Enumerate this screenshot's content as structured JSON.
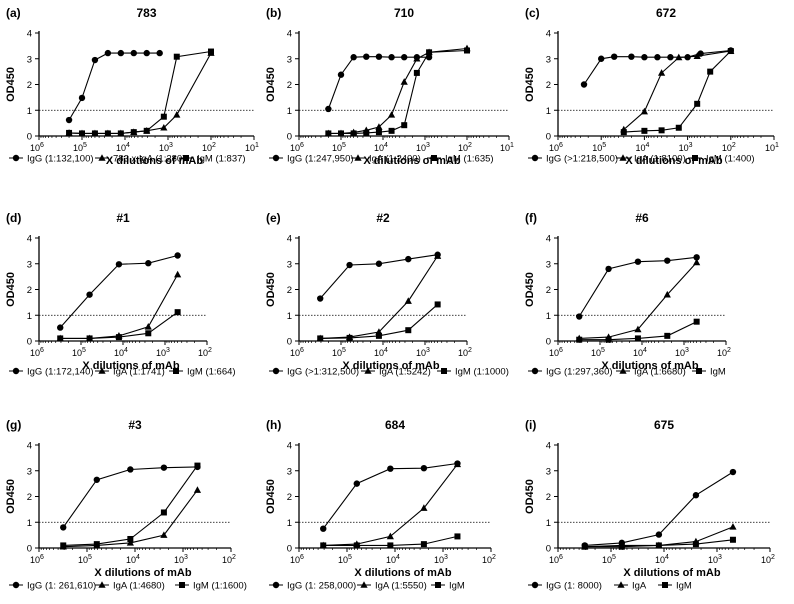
{
  "figure": {
    "x_axis_label": "X dilutions of mAb",
    "y_axis_label": "OD450",
    "threshold": 1
  },
  "chart_data": [
    {
      "type": "line",
      "panel_letter": "(a)",
      "title": "783",
      "xlabel": "X dilutions of mAb",
      "ylabel": "OD450",
      "xscale": "log-reversed",
      "xlim": [
        1000000,
        10
      ],
      "ylim": [
        0,
        4
      ],
      "yticks": [
        "0",
        "1",
        "2",
        "3",
        "4"
      ],
      "xticks": [
        {
          "base": "10",
          "exp": "6"
        },
        {
          "base": "10",
          "exp": "5"
        },
        {
          "base": "10",
          "exp": "4"
        },
        {
          "base": "10",
          "exp": "3"
        },
        {
          "base": "10",
          "exp": "2"
        },
        {
          "base": "10",
          "exp": "1"
        }
      ],
      "threshold": 1,
      "series": [
        {
          "name": "IgG",
          "legend": "IgG (1:132,100)",
          "marker": "circle",
          "x": [
            200000,
            100000,
            50000,
            25000,
            12500,
            6250,
            3125,
            1562
          ],
          "y": [
            0.62,
            1.48,
            2.95,
            3.22,
            3.22,
            3.22,
            3.22,
            3.22
          ]
        },
        {
          "name": "783 x IgA",
          "legend": "783 x IgA (1:280)",
          "marker": "triangle",
          "x": [
            200000,
            100000,
            50000,
            25000,
            12500,
            6250,
            3125,
            1250,
            625,
            100
          ],
          "y": [
            0.12,
            0.1,
            0.1,
            0.1,
            0.1,
            0.15,
            0.2,
            0.32,
            0.82,
            3.22
          ]
        },
        {
          "name": "IgM",
          "legend": "IgM (1:837)",
          "marker": "square",
          "x": [
            200000,
            100000,
            50000,
            25000,
            12500,
            6250,
            3125,
            1250,
            625,
            100
          ],
          "y": [
            0.12,
            0.1,
            0.1,
            0.1,
            0.1,
            0.15,
            0.2,
            0.75,
            3.08,
            3.28
          ]
        }
      ]
    },
    {
      "type": "line",
      "panel_letter": "(b)",
      "title": "710",
      "xlabel": "X dilutions of mAb",
      "ylabel": "OD450",
      "xscale": "log-reversed",
      "xlim": [
        1000000,
        10
      ],
      "ylim": [
        0,
        4
      ],
      "yticks": [
        "0",
        "1",
        "2",
        "3",
        "4"
      ],
      "xticks": [
        {
          "base": "10",
          "exp": "6"
        },
        {
          "base": "10",
          "exp": "5"
        },
        {
          "base": "10",
          "exp": "4"
        },
        {
          "base": "10",
          "exp": "3"
        },
        {
          "base": "10",
          "exp": "2"
        },
        {
          "base": "10",
          "exp": "1"
        }
      ],
      "threshold": 1,
      "series": [
        {
          "name": "IgG",
          "legend": "IgG (1:247,950)",
          "marker": "circle",
          "x": [
            200000,
            100000,
            50000,
            25000,
            12500,
            6250,
            3125,
            1562,
            800
          ],
          "y": [
            1.05,
            2.38,
            3.06,
            3.08,
            3.08,
            3.06,
            3.06,
            3.06,
            3.06
          ]
        },
        {
          "name": "IgA",
          "legend": "IgA (1:2400)",
          "marker": "triangle",
          "x": [
            200000,
            100000,
            50000,
            25000,
            12500,
            6250,
            3125,
            1562,
            800,
            100
          ],
          "y": [
            0.1,
            0.1,
            0.14,
            0.22,
            0.35,
            0.82,
            2.1,
            3.0,
            3.25,
            3.4
          ]
        },
        {
          "name": "IgM",
          "legend": "IgM (1:635)",
          "marker": "square",
          "x": [
            200000,
            100000,
            50000,
            25000,
            12500,
            6250,
            3125,
            1562,
            800,
            100
          ],
          "y": [
            0.1,
            0.1,
            0.1,
            0.12,
            0.15,
            0.2,
            0.42,
            2.45,
            3.25,
            3.32
          ]
        }
      ]
    },
    {
      "type": "line",
      "panel_letter": "(c)",
      "title": "672",
      "xlabel": "X dilutions of mAb",
      "ylabel": "OD450",
      "xscale": "log-reversed",
      "xlim": [
        1000000,
        10
      ],
      "ylim": [
        0,
        4
      ],
      "yticks": [
        "0",
        "1",
        "2",
        "3",
        "4"
      ],
      "xticks": [
        {
          "base": "10",
          "exp": "6"
        },
        {
          "base": "10",
          "exp": "5"
        },
        {
          "base": "10",
          "exp": "4"
        },
        {
          "base": "10",
          "exp": "3"
        },
        {
          "base": "10",
          "exp": "2"
        },
        {
          "base": "10",
          "exp": "1"
        }
      ],
      "threshold": 1,
      "series": [
        {
          "name": "IgG",
          "legend": "IgG (>1:218,500)",
          "marker": "circle",
          "x": [
            250000,
            100000,
            50000,
            20000,
            10000,
            5000,
            2500,
            1000,
            500,
            100
          ],
          "y": [
            2.0,
            3.0,
            3.08,
            3.08,
            3.06,
            3.06,
            3.06,
            3.06,
            3.2,
            3.32
          ]
        },
        {
          "name": "IgA",
          "legend": "IgA (1:8100)",
          "marker": "triangle",
          "x": [
            30000,
            10000,
            4000,
            1600,
            600,
            100
          ],
          "y": [
            0.25,
            0.95,
            2.45,
            3.05,
            3.1,
            3.3
          ]
        },
        {
          "name": "IgM",
          "legend": "IgM (1:400)",
          "marker": "square",
          "x": [
            30000,
            10000,
            4000,
            1600,
            600,
            300,
            100
          ],
          "y": [
            0.15,
            0.2,
            0.22,
            0.32,
            1.25,
            2.5,
            3.3
          ]
        }
      ]
    },
    {
      "type": "line",
      "panel_letter": "(d)",
      "title": "#1",
      "xlabel": "X dilutions of mAb",
      "ylabel": "OD450",
      "xscale": "log-reversed",
      "xlim": [
        1000000,
        100
      ],
      "ylim": [
        0,
        4
      ],
      "yticks": [
        "0",
        "1",
        "2",
        "3",
        "4"
      ],
      "xticks": [
        {
          "base": "10",
          "exp": "6"
        },
        {
          "base": "10",
          "exp": "5"
        },
        {
          "base": "10",
          "exp": "4"
        },
        {
          "base": "10",
          "exp": "3"
        },
        {
          "base": "10",
          "exp": "2"
        }
      ],
      "threshold": 1,
      "series": [
        {
          "name": "IgG",
          "legend": "IgG (1:172,140)",
          "marker": "circle",
          "x": [
            312500,
            62500,
            12500,
            2500,
            500
          ],
          "y": [
            0.52,
            1.8,
            2.98,
            3.02,
            3.32
          ]
        },
        {
          "name": "IgA",
          "legend": "IgA (1:1741)",
          "marker": "triangle",
          "x": [
            312500,
            62500,
            12500,
            2500,
            500
          ],
          "y": [
            0.1,
            0.1,
            0.2,
            0.55,
            2.58
          ]
        },
        {
          "name": "IgM",
          "legend": "IgM (1:664)",
          "marker": "square",
          "x": [
            312500,
            62500,
            12500,
            2500,
            500
          ],
          "y": [
            0.1,
            0.1,
            0.15,
            0.3,
            1.12
          ]
        }
      ]
    },
    {
      "type": "line",
      "panel_letter": "(e)",
      "title": "#2",
      "xlabel": "X dilutions of mAb",
      "ylabel": "OD450",
      "xscale": "log-reversed",
      "xlim": [
        1000000,
        100
      ],
      "ylim": [
        0,
        4
      ],
      "yticks": [
        "0",
        "1",
        "2",
        "3",
        "4"
      ],
      "xticks": [
        {
          "base": "10",
          "exp": "6"
        },
        {
          "base": "10",
          "exp": "5"
        },
        {
          "base": "10",
          "exp": "4"
        },
        {
          "base": "10",
          "exp": "3"
        },
        {
          "base": "10",
          "exp": "2"
        }
      ],
      "threshold": 1,
      "series": [
        {
          "name": "IgG",
          "legend": "IgG (>1:312,500)",
          "marker": "circle",
          "x": [
            312500,
            62500,
            12500,
            2500,
            500
          ],
          "y": [
            1.65,
            2.95,
            3.0,
            3.18,
            3.35
          ]
        },
        {
          "name": "IgA",
          "legend": "IgA (1:5242)",
          "marker": "triangle",
          "x": [
            312500,
            62500,
            12500,
            2500,
            500
          ],
          "y": [
            0.1,
            0.15,
            0.35,
            1.55,
            3.3
          ]
        },
        {
          "name": "IgM",
          "legend": "IgM (1:1000)",
          "marker": "square",
          "x": [
            312500,
            62500,
            12500,
            2500,
            500
          ],
          "y": [
            0.1,
            0.12,
            0.2,
            0.42,
            1.42
          ]
        }
      ]
    },
    {
      "type": "line",
      "panel_letter": "(f)",
      "title": "#6",
      "xlabel": "X dilutions of mAb",
      "ylabel": "OD450",
      "xscale": "log-reversed",
      "xlim": [
        1000000,
        100
      ],
      "ylim": [
        0,
        4
      ],
      "yticks": [
        "0",
        "1",
        "2",
        "3",
        "4"
      ],
      "xticks": [
        {
          "base": "10",
          "exp": "6"
        },
        {
          "base": "10",
          "exp": "5"
        },
        {
          "base": "10",
          "exp": "4"
        },
        {
          "base": "10",
          "exp": "3"
        },
        {
          "base": "10",
          "exp": "2"
        }
      ],
      "threshold": 1,
      "series": [
        {
          "name": "IgG",
          "legend": "IgG (1:297,360)",
          "marker": "circle",
          "x": [
            312500,
            62500,
            12500,
            2500,
            500
          ],
          "y": [
            0.95,
            2.8,
            3.08,
            3.12,
            3.25
          ]
        },
        {
          "name": "IgA",
          "legend": "IgA (1:6680)",
          "marker": "triangle",
          "x": [
            312500,
            62500,
            12500,
            2500,
            500
          ],
          "y": [
            0.1,
            0.15,
            0.45,
            1.8,
            3.05
          ]
        },
        {
          "name": "IgM",
          "legend": "IgM",
          "marker": "square",
          "x": [
            312500,
            62500,
            12500,
            2500,
            500
          ],
          "y": [
            0.05,
            0.05,
            0.1,
            0.2,
            0.75
          ]
        }
      ]
    },
    {
      "type": "line",
      "panel_letter": "(g)",
      "title": "#3",
      "xlabel": "X dilutions of mAb",
      "ylabel": "OD450",
      "xscale": "log-reversed",
      "xlim": [
        1000000,
        100
      ],
      "ylim": [
        0,
        4
      ],
      "yticks": [
        "0",
        "1",
        "2",
        "3",
        "4"
      ],
      "xticks": [
        {
          "base": "10",
          "exp": "6"
        },
        {
          "base": "10",
          "exp": "5"
        },
        {
          "base": "10",
          "exp": "4"
        },
        {
          "base": "10",
          "exp": "3"
        },
        {
          "base": "10",
          "exp": "2"
        }
      ],
      "threshold": 1,
      "series": [
        {
          "name": "IgG",
          "legend": "IgG (1: 261,610)",
          "marker": "circle",
          "x": [
            312500,
            62500,
            12500,
            2500,
            500
          ],
          "y": [
            0.8,
            2.65,
            3.05,
            3.12,
            3.15
          ]
        },
        {
          "name": "IgA",
          "legend": "IgA (1:4680)",
          "marker": "triangle",
          "x": [
            312500,
            62500,
            12500,
            2500,
            500
          ],
          "y": [
            0.05,
            0.1,
            0.2,
            0.5,
            2.25
          ]
        },
        {
          "name": "IgM",
          "legend": "IgM (1:1600)",
          "marker": "square",
          "x": [
            312500,
            62500,
            12500,
            2500,
            500
          ],
          "y": [
            0.1,
            0.15,
            0.35,
            1.38,
            3.2
          ]
        }
      ]
    },
    {
      "type": "line",
      "panel_letter": "(h)",
      "title": "684",
      "xlabel": "X dilutions of mAb",
      "ylabel": "OD450",
      "xscale": "log-reversed",
      "xlim": [
        1000000,
        100
      ],
      "ylim": [
        0,
        4
      ],
      "yticks": [
        "0",
        "1",
        "2",
        "3",
        "4"
      ],
      "xticks": [
        {
          "base": "10",
          "exp": "6"
        },
        {
          "base": "10",
          "exp": "5"
        },
        {
          "base": "10",
          "exp": "4"
        },
        {
          "base": "10",
          "exp": "3"
        },
        {
          "base": "10",
          "exp": "2"
        }
      ],
      "threshold": 1,
      "series": [
        {
          "name": "IgG",
          "legend": "IgG  (1: 258,000)",
          "marker": "circle",
          "x": [
            312500,
            62500,
            12500,
            2500,
            500
          ],
          "y": [
            0.75,
            2.5,
            3.08,
            3.1,
            3.28
          ]
        },
        {
          "name": "IgA",
          "legend": "IgA  (1:5550)",
          "marker": "triangle",
          "x": [
            312500,
            62500,
            12500,
            2500,
            500
          ],
          "y": [
            0.1,
            0.15,
            0.45,
            1.55,
            3.25
          ]
        },
        {
          "name": "IgM",
          "legend": "IgM",
          "marker": "square",
          "x": [
            312500,
            62500,
            12500,
            2500,
            500
          ],
          "y": [
            0.1,
            0.1,
            0.1,
            0.15,
            0.45
          ]
        }
      ]
    },
    {
      "type": "line",
      "panel_letter": "(i)",
      "title": "675",
      "xlabel": "X dilutions of mAb",
      "ylabel": "OD450",
      "xscale": "log-reversed",
      "xlim": [
        1000000,
        100
      ],
      "ylim": [
        0,
        4
      ],
      "yticks": [
        "0",
        "1",
        "2",
        "3",
        "4"
      ],
      "xticks": [
        {
          "base": "10",
          "exp": "6"
        },
        {
          "base": "10",
          "exp": "5"
        },
        {
          "base": "10",
          "exp": "4"
        },
        {
          "base": "10",
          "exp": "3"
        },
        {
          "base": "10",
          "exp": "2"
        }
      ],
      "threshold": 1,
      "series": [
        {
          "name": "IgG",
          "legend": "IgG (1: 8000)",
          "marker": "circle",
          "x": [
            312500,
            62500,
            12500,
            2500,
            500
          ],
          "y": [
            0.1,
            0.2,
            0.52,
            2.05,
            2.95
          ]
        },
        {
          "name": "IgA",
          "legend": "IgA",
          "marker": "triangle",
          "x": [
            312500,
            62500,
            12500,
            2500,
            500
          ],
          "y": [
            0.05,
            0.1,
            0.1,
            0.25,
            0.82
          ]
        },
        {
          "name": "IgM",
          "legend": "IgM",
          "marker": "square",
          "x": [
            312500,
            62500,
            12500,
            2500,
            500
          ],
          "y": [
            0.05,
            0.05,
            0.1,
            0.15,
            0.32
          ]
        }
      ]
    }
  ]
}
